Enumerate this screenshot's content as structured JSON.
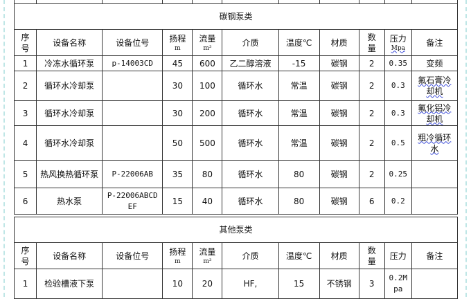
{
  "sections": [
    {
      "title": "碳钢泵类",
      "headers": {
        "no": "序号",
        "name": "设备名称",
        "tag": "设备位号",
        "head": "扬程",
        "head_unit": "m",
        "flow": "流量",
        "flow_unit": "m³",
        "medium": "介质",
        "temp": "温度℃",
        "material": "材质",
        "qty": "数量",
        "pressure": "压力",
        "pressure_unit": "Mpa",
        "remark": "备注"
      },
      "rows": [
        {
          "no": "1",
          "name": "冷冻水循环泵",
          "tag": "p-14003CD",
          "head": "45",
          "flow": "600",
          "medium": "乙二醇溶液",
          "temp": "-15",
          "material": "碳钢",
          "qty": "2",
          "pressure": "0.35",
          "remark": "变频"
        },
        {
          "no": "2",
          "name": "循环水冷却泵",
          "tag": "",
          "head": "30",
          "flow": "100",
          "medium": "循环水",
          "temp": "常温",
          "material": "碳钢",
          "qty": "2",
          "pressure": "0.3",
          "remark": "氟石膏冷却机"
        },
        {
          "no": "3",
          "name": "循环水冷却泵",
          "tag": "",
          "head": "30",
          "flow": "200",
          "medium": "循环水",
          "temp": "常温",
          "material": "碳钢",
          "qty": "2",
          "pressure": "0.3",
          "remark": "氟化铝冷却机"
        },
        {
          "no": "4",
          "name": "循环水冷却泵",
          "tag": "",
          "head": "50",
          "flow": "500",
          "medium": "循环水",
          "temp": "常温",
          "material": "碳钢",
          "qty": "2",
          "pressure": "0.5",
          "remark": "粗冷循环水"
        },
        {
          "no": "5",
          "name": "热风换热循环泵",
          "tag": "P-22006AB",
          "head": "35",
          "flow": "80",
          "medium": "循环水",
          "temp": "80",
          "material": "碳钢",
          "qty": "2",
          "pressure": "0.25",
          "remark": ""
        },
        {
          "no": "6",
          "name": "热水泵",
          "tag": "P-22006ABCDEF",
          "head": "15",
          "flow": "40",
          "medium": "循环水",
          "temp": "80",
          "material": "碳钢",
          "qty": "6",
          "pressure": "0.2",
          "remark": ""
        }
      ]
    },
    {
      "title": "其他泵类",
      "headers": {
        "no": "序号",
        "name": "设备名称",
        "tag": "设备位号",
        "head": "扬程",
        "head_unit": "m",
        "flow": "流量",
        "flow_unit": "m³",
        "medium": "介质",
        "temp": "温度℃",
        "material": "材质",
        "qty": "数量",
        "pressure": "压力",
        "pressure_unit": "",
        "remark": "备注"
      },
      "rows": [
        {
          "no": "1",
          "name": "检验槽液下泵",
          "tag": "",
          "head": "10",
          "flow": "20",
          "medium": "HF,",
          "temp": "15",
          "material": "不锈钢",
          "qty": "3",
          "pressure": "0.2Mpa",
          "remark": ""
        }
      ]
    }
  ]
}
